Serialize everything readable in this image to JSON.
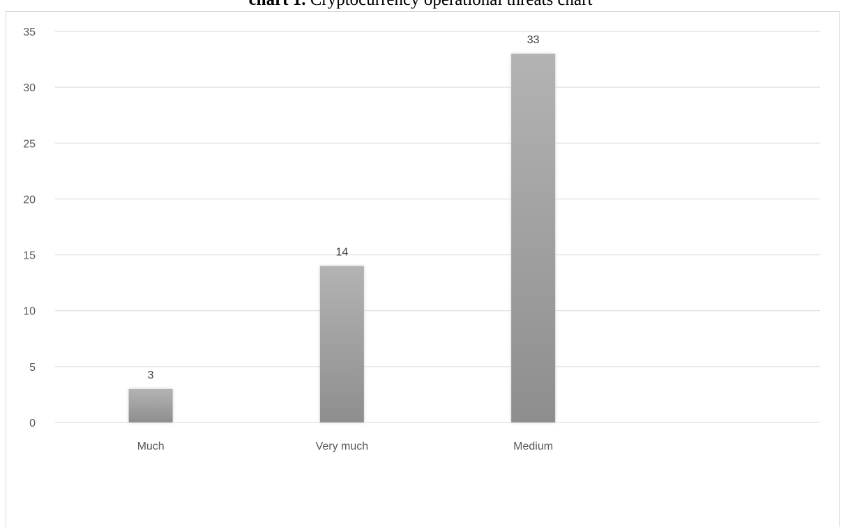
{
  "chart_data": {
    "type": "bar",
    "title_prefix": "chart 1.",
    "title": "Cryptocurrency operational threats chart",
    "categories": [
      "Much",
      "Very much",
      "Medium"
    ],
    "values": [
      3,
      14,
      33
    ],
    "data_labels": [
      "3",
      "14",
      "33"
    ],
    "ylim": [
      0,
      35
    ],
    "yticks": [
      "0",
      "5",
      "10",
      "15",
      "20",
      "25",
      "30",
      "35"
    ],
    "grid": true,
    "legend": "none",
    "xlabel": "",
    "ylabel": ""
  },
  "colors": {
    "bar_top": "#b3b3b3",
    "bar_bottom": "#8e8e8e",
    "gridline": "#d9d9d9",
    "axis": "#d9d9d9"
  }
}
